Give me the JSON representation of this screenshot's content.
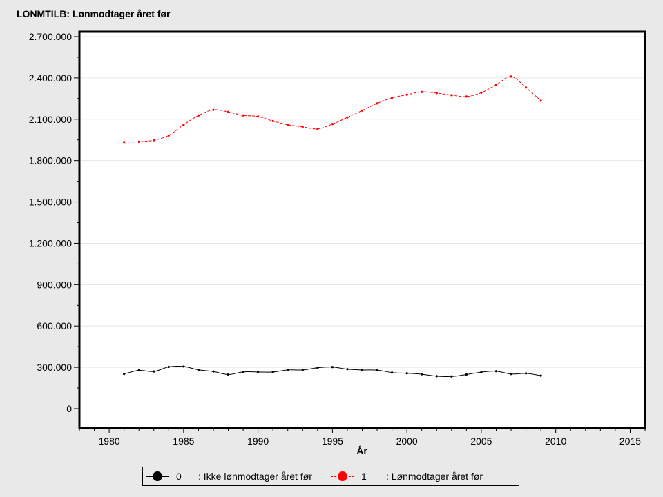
{
  "chart_data": {
    "type": "line",
    "title": "LONMTILB: Lønmodtager året før",
    "xlabel": "År",
    "ylabel": "",
    "xlim": [
      1978,
      2016
    ],
    "ylim": [
      0,
      2750000
    ],
    "xticks": [
      1980,
      1985,
      1990,
      1995,
      2000,
      2005,
      2010,
      2015
    ],
    "xtick_labels": [
      "1980",
      "1985",
      "1990",
      "1995",
      "2000",
      "2005",
      "2010",
      "2015"
    ],
    "yticks": [
      0,
      300000,
      600000,
      900000,
      1200000,
      1500000,
      1800000,
      2100000,
      2400000,
      2700000
    ],
    "ytick_labels": [
      "0",
      "300.000",
      "600.000",
      "900.000",
      "1.200.000",
      "1.500.000",
      "1.800.000",
      "2.100.000",
      "2.400.000",
      "2.700.000"
    ],
    "grid": true,
    "legend_position": "bottom",
    "x": [
      1981,
      1982,
      1983,
      1984,
      1985,
      1986,
      1987,
      1988,
      1989,
      1990,
      1991,
      1992,
      1993,
      1994,
      1995,
      1996,
      1997,
      1998,
      1999,
      2000,
      2001,
      2002,
      2003,
      2004,
      2005,
      2006,
      2007,
      2008,
      2009
    ],
    "series": [
      {
        "name": "0",
        "label": ": Ikke lønmodtager året før",
        "color": "#000000",
        "line_style": "solid",
        "values": [
          252000,
          278000,
          270000,
          303000,
          306000,
          282000,
          270000,
          248000,
          267000,
          266000,
          266000,
          281000,
          281000,
          297000,
          302000,
          287000,
          281000,
          280000,
          262000,
          257000,
          250000,
          236000,
          234000,
          248000,
          265000,
          272000,
          252000,
          256000,
          240000
        ]
      },
      {
        "name": "1",
        "label": ": Lønmodtager året før",
        "color": "#ff0000",
        "line_style": "dashed",
        "values": [
          1935000,
          1937000,
          1948000,
          1982000,
          2060000,
          2127000,
          2168000,
          2153000,
          2128000,
          2120000,
          2087000,
          2060000,
          2045000,
          2030000,
          2065000,
          2113000,
          2163000,
          2215000,
          2255000,
          2278000,
          2298000,
          2290000,
          2275000,
          2265000,
          2293000,
          2350000,
          2410000,
          2330000,
          2235000
        ]
      }
    ]
  }
}
